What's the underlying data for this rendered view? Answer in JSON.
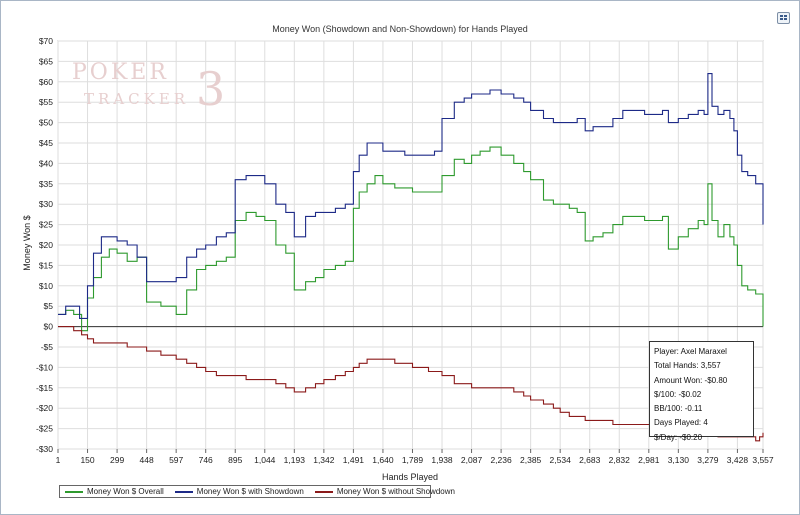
{
  "chart_data": {
    "type": "line",
    "title": "Money Won (Showdown and Non-Showdown) for Hands Played",
    "xlabel": "Hands Played",
    "ylabel": "Money Won $",
    "xlim": [
      1,
      3557
    ],
    "ylim": [
      -30,
      70
    ],
    "yticks": [
      70,
      65,
      60,
      55,
      50,
      45,
      40,
      35,
      30,
      25,
      20,
      15,
      10,
      5,
      0,
      -5,
      -10,
      -15,
      -20,
      -25,
      -30
    ],
    "ytick_labels": [
      "$70",
      "$65",
      "$60",
      "$55",
      "$50",
      "$45",
      "$40",
      "$35",
      "$30",
      "$25",
      "$20",
      "$15",
      "$10",
      "$5",
      "$0",
      "-$5",
      "-$10",
      "-$15",
      "-$20",
      "-$25",
      "-$30"
    ],
    "xticks": [
      1,
      150,
      299,
      448,
      597,
      746,
      895,
      1044,
      1193,
      1342,
      1491,
      1640,
      1789,
      1938,
      2087,
      2236,
      2385,
      2534,
      2683,
      2832,
      2981,
      3130,
      3279,
      3428,
      3557
    ],
    "xtick_labels": [
      "1",
      "150",
      "299",
      "448",
      "597",
      "746",
      "895",
      "1,044",
      "1,193",
      "1,342",
      "1,491",
      "1,640",
      "1,789",
      "1,938",
      "2,087",
      "2,236",
      "2,385",
      "2,534",
      "2,683",
      "2,832",
      "2,981",
      "3,130",
      "3,279",
      "3,428",
      "3,557"
    ],
    "grid": true,
    "legend_position": "bottom-left",
    "series": [
      {
        "name": "Money Won $ Overall",
        "color": "#2e9a2e",
        "points": [
          [
            1,
            3
          ],
          [
            40,
            4
          ],
          [
            80,
            3
          ],
          [
            120,
            -1
          ],
          [
            150,
            7
          ],
          [
            180,
            12
          ],
          [
            220,
            17
          ],
          [
            260,
            19
          ],
          [
            299,
            18
          ],
          [
            350,
            16
          ],
          [
            400,
            17
          ],
          [
            448,
            6
          ],
          [
            520,
            5
          ],
          [
            597,
            3
          ],
          [
            650,
            9
          ],
          [
            700,
            14
          ],
          [
            746,
            15
          ],
          [
            800,
            16
          ],
          [
            850,
            17
          ],
          [
            895,
            26
          ],
          [
            950,
            28
          ],
          [
            1000,
            27
          ],
          [
            1044,
            26
          ],
          [
            1100,
            20
          ],
          [
            1150,
            18
          ],
          [
            1193,
            9
          ],
          [
            1250,
            11
          ],
          [
            1300,
            12
          ],
          [
            1342,
            14
          ],
          [
            1400,
            15
          ],
          [
            1450,
            16
          ],
          [
            1491,
            29
          ],
          [
            1520,
            33
          ],
          [
            1560,
            35
          ],
          [
            1600,
            37
          ],
          [
            1640,
            35
          ],
          [
            1700,
            34
          ],
          [
            1750,
            34
          ],
          [
            1789,
            33
          ],
          [
            1830,
            33
          ],
          [
            1870,
            33
          ],
          [
            1900,
            33
          ],
          [
            1938,
            37
          ],
          [
            2000,
            41
          ],
          [
            2050,
            40
          ],
          [
            2087,
            42
          ],
          [
            2130,
            43
          ],
          [
            2180,
            44
          ],
          [
            2236,
            42
          ],
          [
            2300,
            40
          ],
          [
            2350,
            38
          ],
          [
            2385,
            36
          ],
          [
            2450,
            31
          ],
          [
            2500,
            30
          ],
          [
            2534,
            30
          ],
          [
            2580,
            29
          ],
          [
            2620,
            28
          ],
          [
            2660,
            21
          ],
          [
            2700,
            22
          ],
          [
            2750,
            23
          ],
          [
            2800,
            25
          ],
          [
            2850,
            27
          ],
          [
            2900,
            27
          ],
          [
            2960,
            26
          ],
          [
            3000,
            26
          ],
          [
            3050,
            27
          ],
          [
            3080,
            19
          ],
          [
            3130,
            22
          ],
          [
            3180,
            24
          ],
          [
            3230,
            26
          ],
          [
            3260,
            25
          ],
          [
            3279,
            35
          ],
          [
            3300,
            26
          ],
          [
            3330,
            22
          ],
          [
            3360,
            25
          ],
          [
            3390,
            22
          ],
          [
            3410,
            20
          ],
          [
            3428,
            15
          ],
          [
            3450,
            10
          ],
          [
            3480,
            9
          ],
          [
            3520,
            8
          ],
          [
            3540,
            8
          ],
          [
            3557,
            0
          ]
        ]
      },
      {
        "name": "Money Won $ with Showdown",
        "color": "#1d2a87",
        "points": [
          [
            1,
            3
          ],
          [
            40,
            5
          ],
          [
            80,
            5
          ],
          [
            110,
            2
          ],
          [
            150,
            10
          ],
          [
            180,
            18
          ],
          [
            220,
            22
          ],
          [
            260,
            22
          ],
          [
            299,
            21
          ],
          [
            350,
            20
          ],
          [
            400,
            17
          ],
          [
            448,
            11
          ],
          [
            520,
            11
          ],
          [
            597,
            12
          ],
          [
            650,
            17
          ],
          [
            700,
            19
          ],
          [
            746,
            20
          ],
          [
            800,
            22
          ],
          [
            850,
            23
          ],
          [
            895,
            36
          ],
          [
            950,
            37
          ],
          [
            1000,
            37
          ],
          [
            1044,
            35
          ],
          [
            1100,
            30
          ],
          [
            1150,
            28
          ],
          [
            1193,
            22
          ],
          [
            1250,
            27
          ],
          [
            1300,
            28
          ],
          [
            1342,
            28
          ],
          [
            1400,
            29
          ],
          [
            1450,
            30
          ],
          [
            1491,
            38
          ],
          [
            1520,
            42
          ],
          [
            1560,
            45
          ],
          [
            1600,
            45
          ],
          [
            1640,
            43
          ],
          [
            1700,
            43
          ],
          [
            1750,
            42
          ],
          [
            1789,
            42
          ],
          [
            1830,
            42
          ],
          [
            1870,
            42
          ],
          [
            1900,
            43
          ],
          [
            1938,
            51
          ],
          [
            2000,
            55
          ],
          [
            2050,
            56
          ],
          [
            2087,
            57
          ],
          [
            2130,
            57
          ],
          [
            2180,
            58
          ],
          [
            2236,
            57
          ],
          [
            2300,
            56
          ],
          [
            2350,
            55
          ],
          [
            2385,
            53
          ],
          [
            2450,
            51
          ],
          [
            2500,
            50
          ],
          [
            2534,
            50
          ],
          [
            2580,
            50
          ],
          [
            2620,
            51
          ],
          [
            2660,
            48
          ],
          [
            2700,
            49
          ],
          [
            2750,
            49
          ],
          [
            2800,
            51
          ],
          [
            2850,
            53
          ],
          [
            2900,
            53
          ],
          [
            2960,
            52
          ],
          [
            3000,
            52
          ],
          [
            3050,
            53
          ],
          [
            3080,
            50
          ],
          [
            3130,
            51
          ],
          [
            3180,
            52
          ],
          [
            3230,
            53
          ],
          [
            3260,
            52
          ],
          [
            3279,
            62
          ],
          [
            3300,
            54
          ],
          [
            3330,
            52
          ],
          [
            3360,
            53
          ],
          [
            3390,
            51
          ],
          [
            3410,
            48
          ],
          [
            3428,
            42
          ],
          [
            3450,
            38
          ],
          [
            3480,
            37
          ],
          [
            3520,
            35
          ],
          [
            3540,
            35
          ],
          [
            3557,
            25
          ]
        ]
      },
      {
        "name": "Money Won $ without Showdown",
        "color": "#8b1a1a",
        "points": [
          [
            1,
            0
          ],
          [
            40,
            0
          ],
          [
            80,
            -1
          ],
          [
            120,
            -2
          ],
          [
            150,
            -3
          ],
          [
            180,
            -4
          ],
          [
            220,
            -4
          ],
          [
            260,
            -4
          ],
          [
            299,
            -4
          ],
          [
            350,
            -5
          ],
          [
            400,
            -5
          ],
          [
            448,
            -6
          ],
          [
            520,
            -7
          ],
          [
            597,
            -8
          ],
          [
            650,
            -9
          ],
          [
            700,
            -10
          ],
          [
            746,
            -11
          ],
          [
            800,
            -12
          ],
          [
            850,
            -12
          ],
          [
            895,
            -12
          ],
          [
            950,
            -13
          ],
          [
            1000,
            -13
          ],
          [
            1044,
            -13
          ],
          [
            1100,
            -14
          ],
          [
            1150,
            -15
          ],
          [
            1193,
            -16
          ],
          [
            1250,
            -15
          ],
          [
            1300,
            -14
          ],
          [
            1342,
            -13
          ],
          [
            1400,
            -12
          ],
          [
            1450,
            -11
          ],
          [
            1491,
            -10
          ],
          [
            1520,
            -9
          ],
          [
            1560,
            -8
          ],
          [
            1600,
            -8
          ],
          [
            1640,
            -8
          ],
          [
            1700,
            -9
          ],
          [
            1750,
            -9
          ],
          [
            1789,
            -10
          ],
          [
            1830,
            -10
          ],
          [
            1870,
            -11
          ],
          [
            1900,
            -11
          ],
          [
            1938,
            -12
          ],
          [
            2000,
            -14
          ],
          [
            2050,
            -14
          ],
          [
            2087,
            -15
          ],
          [
            2130,
            -15
          ],
          [
            2180,
            -15
          ],
          [
            2236,
            -15
          ],
          [
            2300,
            -16
          ],
          [
            2350,
            -17
          ],
          [
            2385,
            -18
          ],
          [
            2450,
            -19
          ],
          [
            2500,
            -20
          ],
          [
            2534,
            -21
          ],
          [
            2580,
            -22
          ],
          [
            2620,
            -22
          ],
          [
            2660,
            -23
          ],
          [
            2700,
            -23
          ],
          [
            2750,
            -23
          ],
          [
            2800,
            -24
          ],
          [
            2850,
            -24
          ],
          [
            2900,
            -24
          ],
          [
            2960,
            -24
          ],
          [
            3000,
            -25
          ],
          [
            3050,
            -25
          ],
          [
            3080,
            -25
          ],
          [
            3130,
            -25
          ],
          [
            3180,
            -26
          ],
          [
            3230,
            -26
          ],
          [
            3260,
            -26
          ],
          [
            3279,
            -26
          ],
          [
            3300,
            -26
          ],
          [
            3330,
            -27
          ],
          [
            3360,
            -27
          ],
          [
            3390,
            -27
          ],
          [
            3410,
            -27
          ],
          [
            3428,
            -27
          ],
          [
            3450,
            -27
          ],
          [
            3480,
            -27
          ],
          [
            3520,
            -28
          ],
          [
            3540,
            -27
          ],
          [
            3557,
            -26
          ]
        ]
      }
    ]
  },
  "watermark": {
    "line1": "POKER",
    "line2": "TRACKER",
    "mark": "3"
  },
  "stats": {
    "player": "Player: Axel Maraxel",
    "total_hands": "Total Hands: 3,557",
    "amount_won": "Amount Won: -$0.80",
    "per_100": "$/100: -$0.02",
    "bb_100": "BB/100: -0.11",
    "days_played": "Days Played: 4",
    "per_day": "$/Day: -$0.20"
  }
}
